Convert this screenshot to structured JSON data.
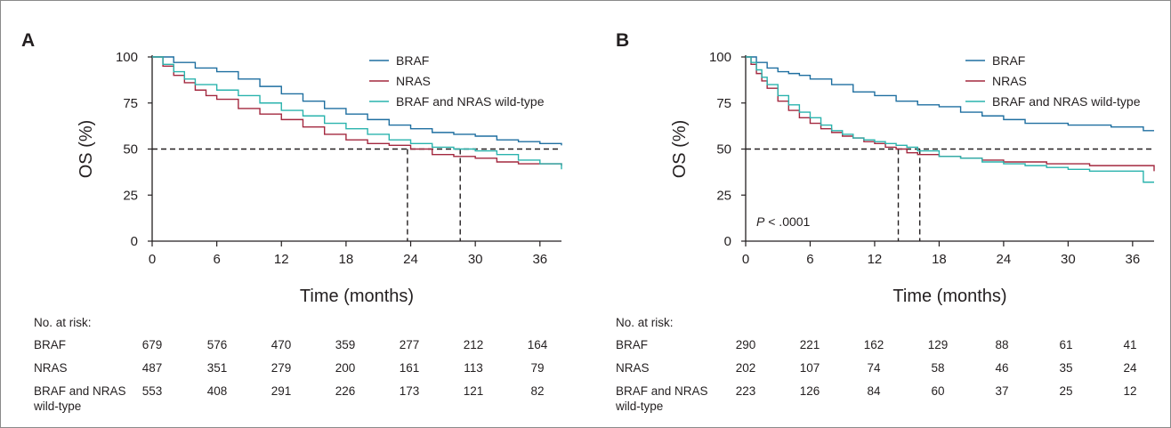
{
  "colors": {
    "braf": "#1f6fa0",
    "nras": "#a3283f",
    "wildtype": "#2ab3ad",
    "axis": "#231f20",
    "frame": "#8a8a8a"
  },
  "chart_data": [
    {
      "type": "line",
      "panel_label": "A",
      "ylabel": "OS (%)",
      "xlabel": "Time (months)",
      "xlim": [
        0,
        38
      ],
      "ylim": [
        0,
        100
      ],
      "xticks": [
        0,
        6,
        12,
        18,
        24,
        30,
        36
      ],
      "yticks": [
        0,
        25,
        50,
        75,
        100
      ],
      "annotation": "",
      "legend_position": "top-right",
      "series": [
        {
          "name": "BRAF",
          "color_key": "braf",
          "x": [
            0,
            2,
            4,
            6,
            8,
            10,
            12,
            14,
            16,
            18,
            20,
            22,
            24,
            26,
            28,
            30,
            32,
            34,
            36,
            38
          ],
          "y": [
            100,
            97,
            94,
            92,
            88,
            84,
            80,
            76,
            72,
            69,
            66,
            63,
            61,
            59,
            58,
            57,
            55,
            54,
            53,
            52
          ]
        },
        {
          "name": "NRAS",
          "color_key": "nras",
          "x": [
            0,
            1,
            2,
            3,
            4,
            5,
            6,
            8,
            10,
            12,
            14,
            16,
            18,
            20,
            22,
            24,
            26,
            28,
            30,
            32,
            34,
            36,
            38
          ],
          "y": [
            100,
            95,
            90,
            86,
            82,
            79,
            77,
            72,
            69,
            66,
            62,
            58,
            55,
            53,
            52,
            50,
            47,
            46,
            45,
            43,
            42,
            42,
            41
          ]
        },
        {
          "name": "BRAF and NRAS wild-type",
          "color_key": "wildtype",
          "x": [
            0,
            1,
            2,
            3,
            4,
            6,
            8,
            10,
            12,
            14,
            16,
            18,
            20,
            22,
            24,
            26,
            28,
            30,
            32,
            34,
            36,
            38
          ],
          "y": [
            100,
            96,
            92,
            88,
            85,
            82,
            79,
            75,
            71,
            68,
            64,
            61,
            58,
            55,
            53,
            51,
            50,
            49,
            47,
            44,
            42,
            39
          ]
        }
      ],
      "medians": [
        23.7,
        28.6
      ],
      "risk_table": {
        "header": "No. at risk:",
        "rows": [
          {
            "label": "BRAF",
            "label_line2": "",
            "values": [
              "679",
              "576",
              "470",
              "359",
              "277",
              "212",
              "164"
            ]
          },
          {
            "label": "NRAS",
            "label_line2": "",
            "values": [
              "487",
              "351",
              "279",
              "200",
              "161",
              "113",
              "79"
            ]
          },
          {
            "label": "BRAF and NRAS",
            "label_line2": "wild-type",
            "values": [
              "553",
              "408",
              "291",
              "226",
              "173",
              "121",
              "82"
            ]
          }
        ]
      }
    },
    {
      "type": "line",
      "panel_label": "B",
      "ylabel": "OS (%)",
      "xlabel": "Time (months)",
      "xlim": [
        0,
        38
      ],
      "ylim": [
        0,
        100
      ],
      "xticks": [
        0,
        6,
        12,
        18,
        24,
        30,
        36
      ],
      "yticks": [
        0,
        25,
        50,
        75,
        100
      ],
      "annotation": "< .0001",
      "annotation_italic": "P",
      "legend_position": "top-right",
      "series": [
        {
          "name": "BRAF",
          "color_key": "braf",
          "x": [
            0,
            1,
            2,
            3,
            4,
            5,
            6,
            8,
            10,
            12,
            14,
            16,
            18,
            20,
            22,
            24,
            26,
            28,
            30,
            32,
            34,
            36,
            37,
            38
          ],
          "y": [
            100,
            97,
            94,
            92,
            91,
            90,
            88,
            85,
            81,
            79,
            76,
            74,
            73,
            70,
            68,
            66,
            64,
            64,
            63,
            63,
            62,
            62,
            60,
            60
          ]
        },
        {
          "name": "NRAS",
          "color_key": "nras",
          "x": [
            0,
            0.5,
            1,
            1.5,
            2,
            3,
            4,
            5,
            6,
            7,
            8,
            9,
            10,
            11,
            12,
            13,
            14,
            15,
            16,
            18,
            20,
            22,
            24,
            26,
            28,
            30,
            32,
            34,
            36,
            37.5,
            38
          ],
          "y": [
            100,
            96,
            91,
            87,
            83,
            76,
            71,
            67,
            64,
            61,
            59,
            57,
            56,
            54,
            53,
            51,
            50,
            48,
            47,
            46,
            45,
            44,
            43,
            43,
            42,
            42,
            41,
            41,
            41,
            41,
            38
          ]
        },
        {
          "name": "BRAF and NRAS wild-type",
          "color_key": "wildtype",
          "x": [
            0,
            0.5,
            1,
            1.5,
            2,
            3,
            4,
            5,
            6,
            7,
            8,
            9,
            10,
            11,
            12,
            13,
            14,
            15,
            16,
            18,
            20,
            22,
            24,
            26,
            28,
            30,
            32,
            34,
            36,
            37,
            38
          ],
          "y": [
            100,
            97,
            93,
            89,
            85,
            79,
            74,
            70,
            67,
            63,
            60,
            58,
            56,
            55,
            54,
            53,
            52,
            51,
            49,
            46,
            45,
            43,
            42,
            41,
            40,
            39,
            38,
            38,
            38,
            32,
            32
          ]
        }
      ],
      "medians": [
        14.2,
        16.2
      ],
      "risk_table": {
        "header": "No. at risk:",
        "rows": [
          {
            "label": "BRAF",
            "label_line2": "",
            "values": [
              "290",
              "221",
              "162",
              "129",
              "88",
              "61",
              "41"
            ]
          },
          {
            "label": "NRAS",
            "label_line2": "",
            "values": [
              "202",
              "107",
              "74",
              "58",
              "46",
              "35",
              "24"
            ]
          },
          {
            "label": "BRAF and NRAS",
            "label_line2": "wild-type",
            "values": [
              "223",
              "126",
              "84",
              "60",
              "37",
              "25",
              "12"
            ]
          }
        ]
      }
    }
  ]
}
